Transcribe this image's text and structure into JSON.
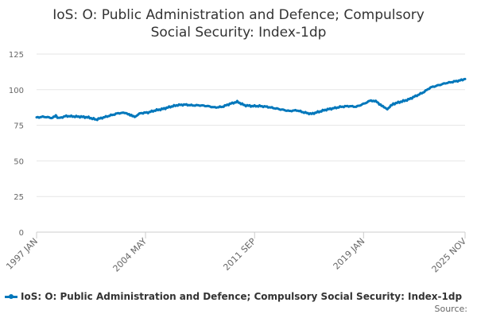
{
  "colors": {
    "series": "#0077bb",
    "grid": "#e6e6e6",
    "axis": "#cccccc"
  },
  "source_label": "Source:",
  "chart_data": {
    "type": "line",
    "title_line1": "IoS: O: Public Administration and Defence; Compulsory",
    "title_line2": "Social Security: Index-1dp",
    "xlabel": "",
    "ylabel": "",
    "ylim": [
      0,
      125
    ],
    "yticks": [
      0,
      25,
      50,
      75,
      100,
      125
    ],
    "xticks": [
      "1997 JAN",
      "2004 MAY",
      "2011 SEP",
      "2019 JAN",
      "2025 NOV"
    ],
    "xtick_years": [
      1997.0,
      2004.33,
      2011.67,
      2019.0,
      2025.83
    ],
    "xlim": [
      1997.0,
      2025.83
    ],
    "grid": true,
    "legend_position": "bottom",
    "series": [
      {
        "name": "IoS: O: Public Administration and Defence; Compulsory Social Security: Index-1dp",
        "x": [
          1997.0,
          1997.5,
          1998.0,
          1998.3,
          1998.5,
          1999.0,
          1999.5,
          2000.0,
          2000.5,
          2001.0,
          2001.5,
          2002.0,
          2002.5,
          2003.0,
          2003.3,
          2003.6,
          2004.0,
          2004.5,
          2005.0,
          2005.5,
          2006.0,
          2006.5,
          2007.0,
          2007.5,
          2008.0,
          2008.5,
          2009.0,
          2009.5,
          2010.0,
          2010.5,
          2011.0,
          2011.5,
          2012.0,
          2012.5,
          2013.0,
          2013.5,
          2014.0,
          2014.5,
          2015.0,
          2015.5,
          2016.0,
          2016.5,
          2017.0,
          2017.5,
          2018.0,
          2018.5,
          2019.0,
          2019.5,
          2019.9,
          2020.3,
          2020.6,
          2021.0,
          2021.5,
          2022.0,
          2022.5,
          2023.0,
          2023.5,
          2024.0,
          2024.5,
          2025.0,
          2025.5,
          2025.83
        ],
        "values": [
          80.5,
          81.0,
          80.2,
          81.5,
          80.0,
          81.5,
          81.2,
          81.0,
          80.5,
          79.0,
          80.5,
          82.0,
          83.5,
          83.8,
          82.0,
          81.0,
          83.5,
          84.0,
          85.5,
          86.5,
          88.0,
          89.2,
          89.5,
          89.0,
          89.0,
          88.5,
          87.5,
          88.0,
          90.0,
          91.5,
          89.0,
          88.5,
          88.5,
          88.0,
          87.0,
          86.0,
          85.0,
          85.5,
          84.0,
          83.0,
          84.5,
          86.0,
          87.0,
          88.0,
          88.5,
          88.0,
          90.0,
          92.5,
          91.5,
          88.0,
          86.5,
          90.0,
          91.5,
          93.0,
          95.5,
          98.0,
          101.5,
          103.0,
          104.5,
          105.5,
          106.5,
          107.5
        ]
      }
    ]
  }
}
